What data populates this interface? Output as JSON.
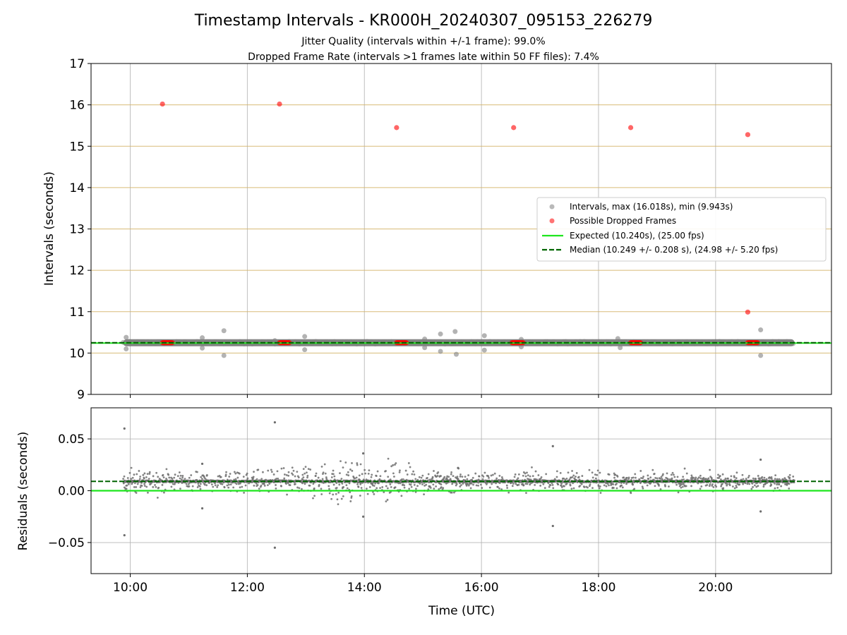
{
  "chart_data": [
    {
      "type": "scatter",
      "title": "Timestamp Intervals - KR000H_20240307_095153_226279",
      "subtitle_lines": [
        "Jitter Quality (intervals within +/-1 frame): 99.0%",
        "Dropped Frame Rate (intervals >1 frames late within 50 FF files): 7.4%"
      ],
      "xlabel": "",
      "ylabel": "Intervals (seconds)",
      "ylim": [
        9,
        17
      ],
      "yticks": [
        9,
        10,
        11,
        12,
        13,
        14,
        15,
        16,
        17
      ],
      "ytick_labels": [
        "9",
        "10",
        "11",
        "12",
        "13",
        "14",
        "15",
        "16",
        "17"
      ],
      "xlim": [
        9.33,
        21.98
      ],
      "xticks": [
        10,
        12,
        14,
        16,
        18,
        20
      ],
      "frame_lines": [
        10.0,
        10.24,
        15.0,
        16.0
      ],
      "grid": "x and frame-interval lines",
      "legend_position": "center-right",
      "legend": [
        "Intervals, max (16.018s), min (9.943s)",
        "Possible Dropped Frames",
        "Expected (10.240s), (25.00 fps)",
        "Median (10.249 +/- 0.208 s), (24.98 +/- 5.20 fps)"
      ],
      "expected": 10.24,
      "median": 10.249,
      "intervals_band": {
        "x_start": 9.88,
        "x_end": 21.35,
        "value": 10.249
      },
      "interval_outliers": [
        {
          "x": 9.93,
          "y": 10.38
        },
        {
          "x": 9.93,
          "y": 10.1
        },
        {
          "x": 11.23,
          "y": 10.37
        },
        {
          "x": 11.23,
          "y": 10.12
        },
        {
          "x": 11.6,
          "y": 10.54
        },
        {
          "x": 11.6,
          "y": 9.94
        },
        {
          "x": 12.47,
          "y": 10.3
        },
        {
          "x": 12.98,
          "y": 10.4
        },
        {
          "x": 12.98,
          "y": 10.08
        },
        {
          "x": 15.03,
          "y": 10.34
        },
        {
          "x": 15.03,
          "y": 10.13
        },
        {
          "x": 15.3,
          "y": 10.46
        },
        {
          "x": 15.3,
          "y": 10.04
        },
        {
          "x": 15.55,
          "y": 10.52
        },
        {
          "x": 15.57,
          "y": 9.97
        },
        {
          "x": 16.05,
          "y": 10.42
        },
        {
          "x": 16.05,
          "y": 10.07
        },
        {
          "x": 16.68,
          "y": 10.33
        },
        {
          "x": 16.68,
          "y": 10.15
        },
        {
          "x": 18.33,
          "y": 10.35
        },
        {
          "x": 18.37,
          "y": 10.13
        },
        {
          "x": 20.77,
          "y": 10.56
        },
        {
          "x": 20.77,
          "y": 9.94
        }
      ],
      "dropped_frames": [
        {
          "x": 10.55,
          "y": 16.02
        },
        {
          "x": 12.55,
          "y": 16.02
        },
        {
          "x": 14.55,
          "y": 15.45
        },
        {
          "x": 16.55,
          "y": 15.45
        },
        {
          "x": 18.55,
          "y": 15.45
        },
        {
          "x": 20.55,
          "y": 15.28
        },
        {
          "x": 20.55,
          "y": 10.99
        }
      ],
      "dropped_frame_clusters": [
        {
          "x_start": 10.55,
          "x_end": 10.72,
          "y": 10.25
        },
        {
          "x_start": 12.55,
          "x_end": 12.72,
          "y": 10.25
        },
        {
          "x_start": 14.55,
          "x_end": 14.72,
          "y": 10.25
        },
        {
          "x_start": 16.52,
          "x_end": 16.72,
          "y": 10.25
        },
        {
          "x_start": 18.55,
          "x_end": 18.72,
          "y": 10.25
        },
        {
          "x_start": 20.55,
          "x_end": 20.72,
          "y": 10.25
        }
      ]
    },
    {
      "type": "scatter",
      "xlabel": "Time (UTC)",
      "ylabel": "Residuals (seconds)",
      "ylim": [
        -0.08,
        0.08
      ],
      "yticks": [
        -0.05,
        0.0,
        0.05
      ],
      "ytick_labels": [
        "−0.05",
        "0.00",
        "0.05"
      ],
      "xlim": [
        9.33,
        21.98
      ],
      "xticks": [
        10,
        12,
        14,
        16,
        18,
        20
      ],
      "xtick_labels": [
        "10:00",
        "12:00",
        "14:00",
        "16:00",
        "18:00",
        "20:00"
      ],
      "grid": "both",
      "expected_residual": 0.0,
      "median_residual": 0.009,
      "residual_band": {
        "x_start": 9.88,
        "x_end": 21.35,
        "center": 0.009,
        "spread": 0.005
      },
      "scatter_spread_by_time": [
        {
          "x": 9.9,
          "spread": 0.01
        },
        {
          "x": 11.0,
          "spread": 0.008
        },
        {
          "x": 12.5,
          "spread": 0.01
        },
        {
          "x": 13.5,
          "spread": 0.018
        },
        {
          "x": 14.5,
          "spread": 0.013
        },
        {
          "x": 16.0,
          "spread": 0.008
        },
        {
          "x": 18.0,
          "spread": 0.009
        },
        {
          "x": 20.0,
          "spread": 0.007
        },
        {
          "x": 21.3,
          "spread": 0.006
        }
      ],
      "residual_outliers": [
        {
          "x": 9.9,
          "y": 0.06
        },
        {
          "x": 9.9,
          "y": -0.043
        },
        {
          "x": 12.47,
          "y": 0.066
        },
        {
          "x": 12.47,
          "y": -0.055
        },
        {
          "x": 17.22,
          "y": 0.043
        },
        {
          "x": 17.22,
          "y": -0.034
        },
        {
          "x": 11.23,
          "y": 0.026
        },
        {
          "x": 11.23,
          "y": -0.017
        },
        {
          "x": 13.98,
          "y": 0.036
        },
        {
          "x": 13.98,
          "y": -0.025
        },
        {
          "x": 15.6,
          "y": 0.022
        },
        {
          "x": 20.77,
          "y": 0.03
        },
        {
          "x": 20.77,
          "y": -0.02
        }
      ]
    }
  ]
}
